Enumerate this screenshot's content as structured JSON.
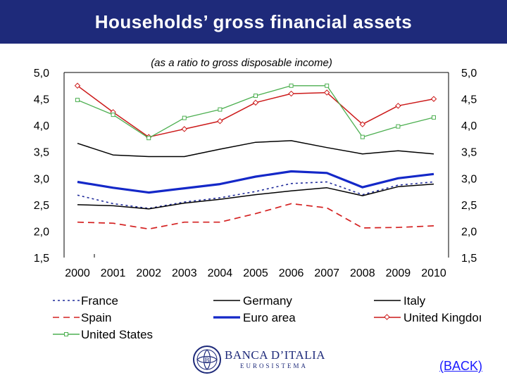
{
  "header": {
    "title": "Households’ gross financial assets"
  },
  "chart_data": {
    "type": "line",
    "title": "Households’ gross financial assets",
    "subtitle": "(as a ratio to gross disposable income)",
    "xlabel": "",
    "ylabel": "",
    "categories": [
      "2000",
      "2001",
      "2002",
      "2003",
      "2004",
      "2005",
      "2006",
      "2007",
      "2008",
      "2009",
      "2010"
    ],
    "ylim": [
      1.5,
      5.0
    ],
    "yticks": [
      "5,0",
      "4,5",
      "4,0",
      "3,5",
      "3,0",
      "2,5",
      "2,0",
      "1,5"
    ],
    "grid": false,
    "legend_position": "bottom",
    "series": [
      {
        "name": "France",
        "color": "#1e2a9a",
        "style": "dotted",
        "values": [
          2.68,
          2.52,
          2.43,
          2.55,
          2.63,
          2.75,
          2.9,
          2.93,
          2.69,
          2.87,
          2.93
        ]
      },
      {
        "name": "Germany",
        "color": "#000000",
        "style": "solid",
        "values": [
          2.5,
          2.48,
          2.42,
          2.53,
          2.6,
          2.69,
          2.76,
          2.82,
          2.67,
          2.84,
          2.89
        ]
      },
      {
        "name": "Italy",
        "color": "#000000",
        "style": "solid",
        "values": [
          3.66,
          3.44,
          3.41,
          3.41,
          3.55,
          3.68,
          3.71,
          3.58,
          3.46,
          3.52,
          3.46
        ]
      },
      {
        "name": "Spain",
        "color": "#d42020",
        "style": "dashed",
        "values": [
          2.17,
          2.15,
          2.04,
          2.17,
          2.17,
          2.33,
          2.52,
          2.44,
          2.06,
          2.07,
          2.1
        ]
      },
      {
        "name": "Euro area",
        "color": "#1428c8",
        "style": "thick",
        "values": [
          2.93,
          2.82,
          2.73,
          2.81,
          2.89,
          3.03,
          3.13,
          3.1,
          2.83,
          3.0,
          3.08
        ]
      },
      {
        "name": "United Kingdom",
        "color": "#cc1a1a",
        "style": "diamond",
        "values": [
          4.75,
          4.25,
          3.78,
          3.93,
          4.08,
          4.43,
          4.6,
          4.62,
          4.02,
          4.37,
          4.5
        ]
      },
      {
        "name": "United States",
        "color": "#4caf50",
        "style": "square",
        "values": [
          4.48,
          4.2,
          3.76,
          4.14,
          4.3,
          4.56,
          4.75,
          4.75,
          3.78,
          3.98,
          4.15
        ]
      }
    ]
  },
  "legend": {
    "france": "France",
    "germany": "Germany",
    "italy": "Italy",
    "spain": "Spain",
    "euro_area": "Euro area",
    "uk": "United Kingdoı",
    "us": "United States"
  },
  "logo": {
    "name": "BANCA D’ITALIA",
    "sub": "EUROSISTEMA"
  },
  "back_link": "(BACK)"
}
